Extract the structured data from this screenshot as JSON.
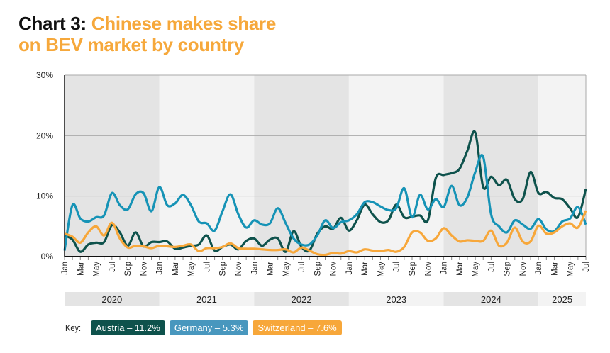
{
  "title": {
    "prefix": "Chart 3:",
    "highlight_line1": "Chinese makes share",
    "highlight_line2": "on BEV market by country"
  },
  "key": {
    "label": "Key:"
  },
  "chart_data": {
    "type": "line",
    "title": "Chart 3: Chinese makes share on BEV market by country",
    "ylim": [
      0,
      30
    ],
    "yticks": [
      "0%",
      "10%",
      "20%",
      "30%"
    ],
    "ytick_values": [
      0,
      10,
      20,
      30
    ],
    "month_labels": [
      "Jan",
      "Mar",
      "May",
      "Jul",
      "Sep",
      "Nov",
      "Jan",
      "Mar",
      "May",
      "Jul",
      "Sep",
      "Nov",
      "Jan",
      "Mar",
      "May",
      "Jul",
      "Sep",
      "Nov",
      "Jan",
      "Mar",
      "May",
      "Jul",
      "Sep",
      "Nov",
      "Jan",
      "Mar",
      "May",
      "Jul",
      "Sep",
      "Nov",
      "Jan",
      "Mar",
      "May",
      "Jul"
    ],
    "years": [
      "2020",
      "2021",
      "2022",
      "2023",
      "2024",
      "2025"
    ],
    "x_start": "Jan 2020",
    "x_end": "Jul 2025",
    "n_months": 67,
    "grid": true,
    "legend_position": "bottom-left",
    "series": [
      {
        "name": "Austria",
        "legend": "Austria – 11.2%",
        "color": "#0e524c",
        "values": [
          3.5,
          2.8,
          0.8,
          2,
          2.3,
          2.4,
          5.2,
          4,
          1.8,
          4,
          1.7,
          2.4,
          2.4,
          2.5,
          1.3,
          1.5,
          1.8,
          2,
          3.5,
          1,
          1.6,
          2,
          1.2,
          2.6,
          3,
          1.8,
          2.8,
          3,
          0.8,
          4.2,
          1.6,
          1,
          3.8,
          5,
          4.6,
          6.4,
          4.3,
          6,
          8.6,
          7,
          5.7,
          6,
          8.6,
          6.5,
          6.6,
          6.8,
          6,
          13,
          13.5,
          13.8,
          14.5,
          17.5,
          20.5,
          11.5,
          13.2,
          11.8,
          12.7,
          9.5,
          9.5,
          14,
          10.5,
          10.7,
          9.7,
          9.5,
          8,
          6.5,
          11.2
        ]
      },
      {
        "name": "Germany",
        "legend": "Germany – 5.3%",
        "color": "#1693b6",
        "legend_color": "#4897be",
        "values": [
          1,
          8.5,
          6.3,
          5.8,
          6.5,
          6.8,
          10.5,
          8.5,
          7.8,
          10.3,
          10.5,
          7.5,
          11.5,
          8.5,
          8.8,
          10.2,
          8.5,
          5.8,
          5.5,
          4.3,
          7.5,
          10.3,
          7,
          4.8,
          6,
          5.3,
          5.5,
          8,
          5.5,
          3,
          2,
          2,
          3.5,
          6,
          4.7,
          5.7,
          6,
          7,
          9,
          9,
          8.3,
          7.7,
          8,
          11.3,
          6.5,
          10.2,
          7.8,
          9.5,
          8.2,
          11.7,
          8.5,
          9.8,
          14,
          16.5,
          7,
          5,
          4,
          6,
          5.3,
          4.6,
          6.2,
          4.5,
          4.2,
          5.8,
          6.3,
          8.2,
          5.3
        ]
      },
      {
        "name": "Switzerland",
        "legend": "Switzerland – 7.6%",
        "color": "#f7a73a",
        "values": [
          3.8,
          3.3,
          2.3,
          4,
          5,
          3.5,
          5.6,
          3,
          1.5,
          1.8,
          1.7,
          1.4,
          1.8,
          1.7,
          1.6,
          1.8,
          2,
          0.9,
          1.4,
          1.4,
          1.6,
          2.2,
          1.4,
          1.3,
          1.3,
          1.2,
          1.1,
          1.1,
          1.2,
          0.7,
          1.5,
          1,
          0.4,
          0.3,
          0.6,
          0.5,
          0.9,
          0.7,
          1.2,
          1,
          0.9,
          1.1,
          0.8,
          1.6,
          4,
          4,
          2.6,
          3,
          4.7,
          3.5,
          2.5,
          2.7,
          2.6,
          2.6,
          4.3,
          1.8,
          2.3,
          4.8,
          2.5,
          2.5,
          5.1,
          3.8,
          4,
          5,
          5.5,
          4.8,
          7.6
        ]
      }
    ]
  }
}
